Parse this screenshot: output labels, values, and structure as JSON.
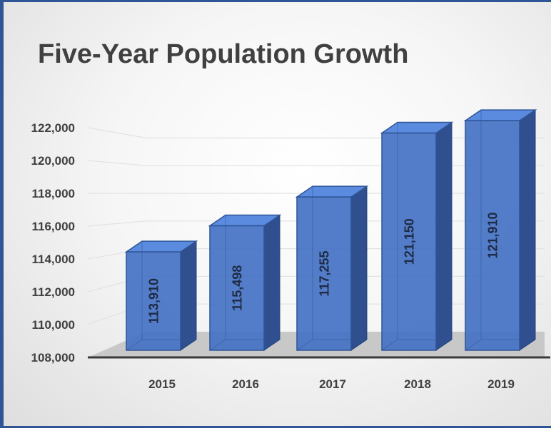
{
  "chart_data": {
    "type": "bar",
    "title": "Five-Year Population Growth",
    "xlabel": "",
    "ylabel": "",
    "categories": [
      "2015",
      "2016",
      "2017",
      "2018",
      "2019"
    ],
    "values": [
      113910,
      115498,
      117255,
      121150,
      121910
    ],
    "data_labels": [
      "113,910",
      "115,498",
      "117,255",
      "121,150",
      "121,910"
    ],
    "ylim": [
      108000,
      122000
    ],
    "y_ticks": [
      "108,000",
      "110,000",
      "112,000",
      "114,000",
      "116,000",
      "118,000",
      "120,000",
      "122,000"
    ],
    "grid": true,
    "legend": "none",
    "style": "3d-column"
  },
  "colors": {
    "bar_front": "#4472c4",
    "bar_side": "#2f4f8f",
    "bar_top": "#5b8bdf",
    "border": "#2f5597",
    "title": "#404040"
  }
}
